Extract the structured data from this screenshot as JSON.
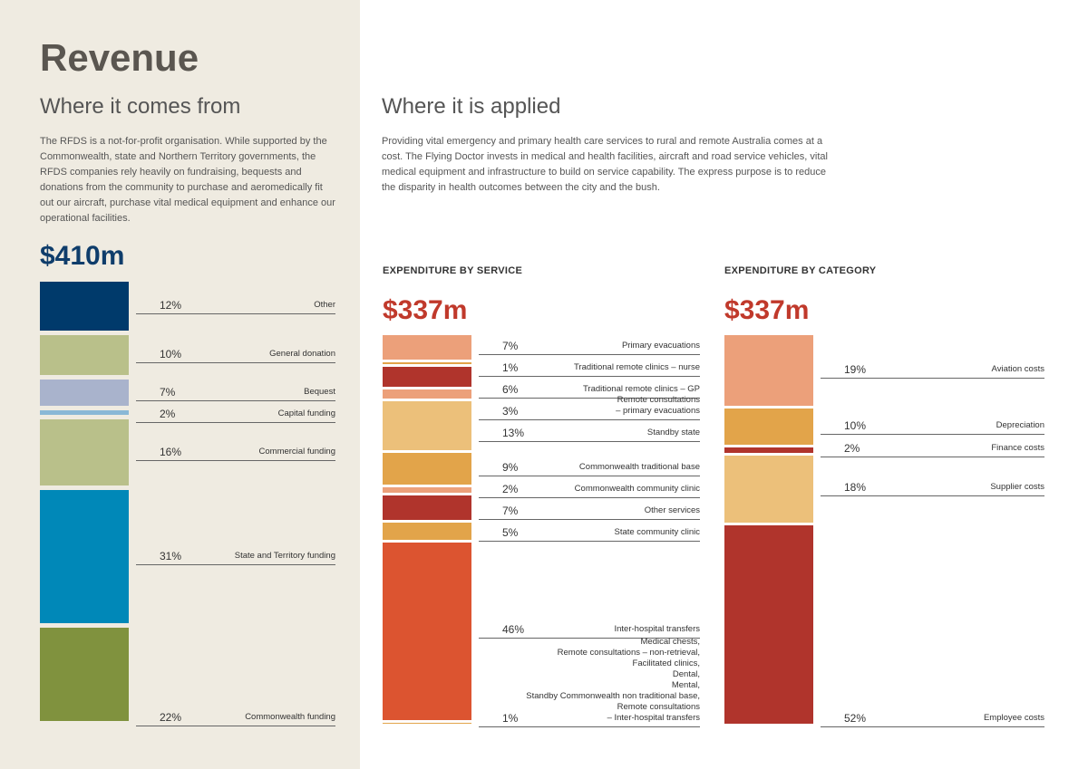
{
  "page": {
    "title": "Revenue",
    "left_heading": "Where it comes from",
    "left_text": "The RFDS is a not-for-profit organisation. While supported by the Commonwealth, state and Northern Territory governments, the RFDS companies rely heavily on fundraising, bequests and donations from the community to purchase and aeromedically fit out our aircraft, purchase vital medical equipment and enhance our operational facilities.",
    "right_heading": "Where it is applied",
    "right_text": "Providing vital emergency and primary health care services to rural and remote Australia comes at a cost. The Flying Doctor invests in medical and health facilities, aircraft and road service vehicles, vital medical equipment and infrastructure to build on service capability. The express purpose is to reduce the disparity in health outcomes between the city and the bush."
  },
  "chart_data": [
    {
      "type": "stacked-bar",
      "title": "$410m",
      "title_color": "#0f3d6b",
      "categories": [
        "Other",
        "General donation",
        "Bequest",
        "Capital funding",
        "Commercial funding",
        "State and Territory funding",
        "Commonwealth funding"
      ],
      "values": [
        12,
        10,
        7,
        2,
        16,
        31,
        22
      ],
      "value_labels": [
        "12%",
        "10%",
        "7%",
        "2%",
        "16%",
        "31%",
        "22%"
      ],
      "colors": [
        "#003a6b",
        "#b9c08a",
        "#a9b3cc",
        "#8ab8d6",
        "#b9c08a",
        "#0088b8",
        "#80923e"
      ]
    },
    {
      "type": "stacked-bar",
      "subtitle": "EXPENDITURE BY SERVICE",
      "title": "$337m",
      "title_color": "#c0392b",
      "categories": [
        "Primary evacuations",
        "Traditional remote clinics – nurse",
        "Traditional remote clinics – GP",
        "Remote consultations\n– primary evacuations",
        "Standby state",
        "Commonwealth traditional base",
        "Commonwealth community clinic",
        "Other services",
        "State community clinic",
        "Inter-hospital transfers",
        "Medical chests,\nRemote consultations – non-retrieval,\nFacilitated clinics,\nDental,\nMental,\nStandby Commonwealth non traditional base,\nRemote consultations\n– Inter-hospital transfers"
      ],
      "values": [
        7,
        1,
        6,
        3,
        13,
        9,
        2,
        7,
        5,
        46,
        1
      ],
      "value_labels": [
        "7%",
        "1%",
        "6%",
        "3%",
        "13%",
        "9%",
        "2%",
        "7%",
        "5%",
        "46%",
        "1%"
      ],
      "colors": [
        "#eca07a",
        "#e2a44a",
        "#b0342c",
        "#eca07a",
        "#ecc07a",
        "#e2a44a",
        "#eca07a",
        "#b0342c",
        "#e2a44a",
        "#dc5430",
        "#e2a44a"
      ]
    },
    {
      "type": "stacked-bar",
      "subtitle": "EXPENDITURE BY CATEGORY",
      "title": "$337m",
      "title_color": "#c0392b",
      "categories": [
        "Aviation costs",
        "Depreciation",
        "Finance costs",
        "Supplier costs",
        "Employee costs"
      ],
      "values": [
        19,
        10,
        2,
        18,
        52
      ],
      "value_labels": [
        "19%",
        "10%",
        "2%",
        "18%",
        "52%"
      ],
      "colors": [
        "#eca07a",
        "#e2a44a",
        "#b0342c",
        "#ecc07a",
        "#b0342c"
      ]
    }
  ]
}
